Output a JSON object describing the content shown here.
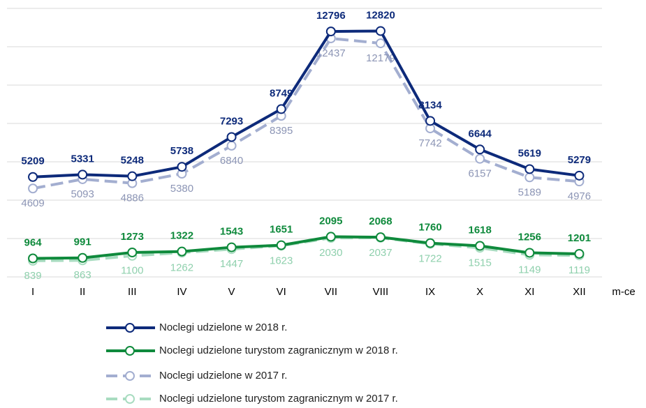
{
  "chart_data": {
    "type": "line",
    "categories": [
      "I",
      "II",
      "III",
      "IV",
      "V",
      "VI",
      "VII",
      "VIII",
      "IX",
      "X",
      "XI",
      "XII"
    ],
    "x_label": "m-ce",
    "ylim": [
      0,
      14000
    ],
    "yticks": [
      0,
      2000,
      4000,
      6000,
      8000,
      10000,
      12000,
      14000
    ],
    "grid": true,
    "series": [
      {
        "name": "Noclegi udzielone w 2018 r.",
        "color": "#0d2a7a",
        "style": "solid",
        "values": [
          5209,
          5331,
          5248,
          5738,
          7293,
          8749,
          12796,
          12820,
          8134,
          6644,
          5619,
          5279
        ]
      },
      {
        "name": "Noclegi udzielone turystom zagranicznym w 2018 r.",
        "color": "#0f8a3c",
        "style": "solid",
        "values": [
          964,
          991,
          1273,
          1322,
          1543,
          1651,
          2095,
          2068,
          1760,
          1618,
          1256,
          1201
        ]
      },
      {
        "name": "Noclegi udzielone w 2017 r.",
        "color": "#a3aed0",
        "style": "dashed",
        "values": [
          4609,
          5093,
          4886,
          5380,
          6840,
          8395,
          12437,
          12179,
          7742,
          6157,
          5189,
          4976
        ]
      },
      {
        "name": "Noclegi udzielone turystom zagranicznym w 2017 r.",
        "color": "#a8dcc0",
        "style": "dashed",
        "values": [
          839,
          863,
          1100,
          1262,
          1447,
          1623,
          2030,
          2037,
          1722,
          1515,
          1149,
          1119
        ]
      }
    ]
  }
}
